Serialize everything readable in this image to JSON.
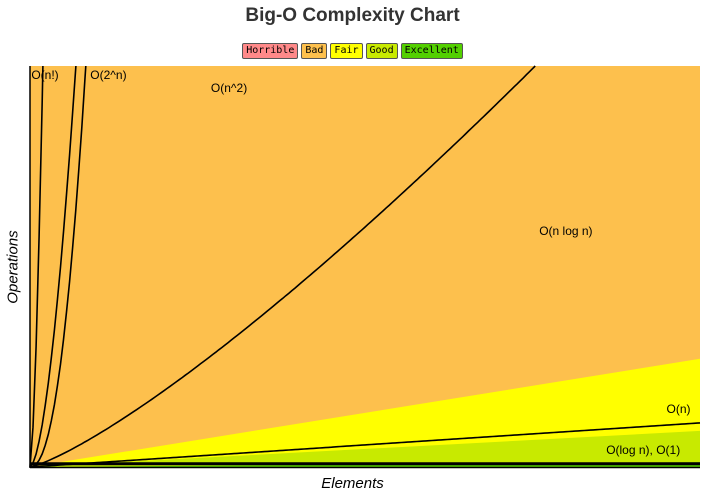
{
  "chart_data": {
    "type": "area",
    "title": "Big-O Complexity Chart",
    "xlabel": "Elements",
    "ylabel": "Operations",
    "xlim": [
      0,
      100
    ],
    "ylim": [
      0,
      100
    ],
    "grid": false,
    "legend_placement": "top-center",
    "legend": [
      {
        "name": "Horrible",
        "color": "#ff8989"
      },
      {
        "name": "Bad",
        "color": "#fdc04d"
      },
      {
        "name": "Fair",
        "color": "#ffff00"
      },
      {
        "name": "Good",
        "color": "#c8ea00"
      },
      {
        "name": "Excellent",
        "color": "#53d000"
      }
    ],
    "regions": [
      {
        "name": "Horrible",
        "color": "#ff8989",
        "y_at_right_edge": 100
      },
      {
        "name": "Bad",
        "color": "#fdc04d",
        "y_at_right_edge": 100
      },
      {
        "name": "Fair",
        "color": "#ffff00",
        "y_at_right_edge": 27
      },
      {
        "name": "Good",
        "color": "#c8ea00",
        "y_at_right_edge": 9
      },
      {
        "name": "Excellent",
        "color": "#53d000",
        "y_at_right_edge": 1.2
      }
    ],
    "series": [
      {
        "name": "O(n!)",
        "label_x": 0.5
      },
      {
        "name": "O(2^n)",
        "label_x": 9
      },
      {
        "name": "O(n^2)",
        "label_x": 27
      },
      {
        "name": "O(n log n)",
        "label_x": 76
      },
      {
        "name": "O(n)",
        "label_x": 95
      },
      {
        "name": "O(log n), O(1)",
        "label_x": 86
      }
    ]
  }
}
